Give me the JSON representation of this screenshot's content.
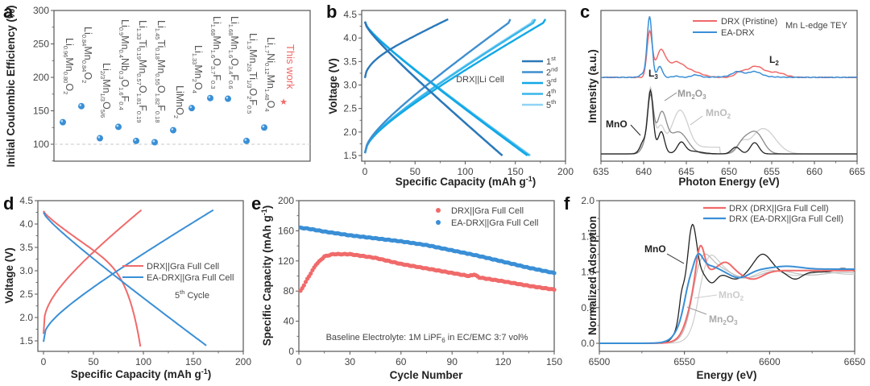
{
  "chart_data": [
    {
      "id": "a",
      "panel_label": "a",
      "type": "scatter",
      "title": "",
      "xlabel": "",
      "ylabel": "Initial Coulombic Efficiency (%)",
      "ylim": [
        75,
        300
      ],
      "yticks": [
        "100",
        "150",
        "200",
        "250",
        "300"
      ],
      "reference_line": 100,
      "points": [
        {
          "material": "Li0.96Mn0.80O2",
          "value": 133
        },
        {
          "material": "Li0.84Mn0.84O2",
          "value": 157
        },
        {
          "material": "Li2/3Mn1/3O5/6",
          "value": 109
        },
        {
          "material": "Li0.9Mn0.4Nb0.3O1.6F0.4",
          "value": 126
        },
        {
          "material": "Li1.33Ti0.19Mn0.57O1.81F0.19",
          "value": 105
        },
        {
          "material": "Li1.45Ti0.18Mn0.55O1.82F0.18",
          "value": 103
        },
        {
          "material": "LiMnO2",
          "value": 121
        },
        {
          "material": "Li1.33Mn2O4",
          "value": 154
        },
        {
          "material": "Li1.68Mn1.6O3.7F0.3",
          "value": 169
        },
        {
          "material": "Li1.68Mn1.6O3.4F0.6",
          "value": 168
        },
        {
          "material": "Li1.5Mn2/3Ti1/3O2F0.5",
          "value": 105
        },
        {
          "material": "Li1.7Ni0.12Mn1.48O4",
          "value": 125
        }
      ],
      "labels": [
        [
          [
            "Li",
            ""
          ],
          [
            "0.96",
            "s"
          ],
          [
            "Mn",
            ""
          ],
          [
            "0.80",
            "s"
          ],
          [
            "O",
            ""
          ],
          [
            "2",
            "s"
          ]
        ],
        [
          [
            "Li",
            ""
          ],
          [
            "0.84",
            "s"
          ],
          [
            "Mn",
            ""
          ],
          [
            "0.84",
            "s"
          ],
          [
            "O",
            ""
          ],
          [
            "2",
            "s"
          ]
        ],
        [
          [
            "Li",
            ""
          ],
          [
            "2/3",
            "s"
          ],
          [
            "Mn",
            ""
          ],
          [
            "1/3",
            "s"
          ],
          [
            "O",
            ""
          ],
          [
            "5/6",
            "s"
          ]
        ],
        [
          [
            "Li",
            ""
          ],
          [
            "0.9",
            "s"
          ],
          [
            "Mn",
            ""
          ],
          [
            "0.4",
            "s"
          ],
          [
            "Nb",
            ""
          ],
          [
            "0.3",
            "s"
          ],
          [
            "O",
            ""
          ],
          [
            "1.6",
            "s"
          ],
          [
            "F",
            ""
          ],
          [
            "0.4",
            "s"
          ]
        ],
        [
          [
            "Li",
            ""
          ],
          [
            "1.33",
            "s"
          ],
          [
            "Ti",
            ""
          ],
          [
            "0.19",
            "s"
          ],
          [
            "Mn",
            ""
          ],
          [
            "0.57",
            "s"
          ],
          [
            "O",
            ""
          ],
          [
            "1.81",
            "s"
          ],
          [
            "F",
            ""
          ],
          [
            "0.19",
            "s"
          ]
        ],
        [
          [
            "Li",
            ""
          ],
          [
            "1.45",
            "s"
          ],
          [
            "Ti",
            ""
          ],
          [
            "0.18",
            "s"
          ],
          [
            "Mn",
            ""
          ],
          [
            "0.55",
            "s"
          ],
          [
            "O",
            ""
          ],
          [
            "1.82",
            "s"
          ],
          [
            "F",
            ""
          ],
          [
            "0.18",
            "s"
          ]
        ],
        [
          [
            "LiMnO",
            ""
          ],
          [
            "2",
            "s"
          ]
        ],
        [
          [
            "Li",
            ""
          ],
          [
            "1.33",
            "s"
          ],
          [
            "Mn",
            ""
          ],
          [
            "2",
            "s"
          ],
          [
            "O",
            ""
          ],
          [
            "4",
            "s"
          ]
        ],
        [
          [
            "Li",
            ""
          ],
          [
            "1.68",
            "s"
          ],
          [
            "Mn",
            ""
          ],
          [
            "1.6",
            "s"
          ],
          [
            "O",
            ""
          ],
          [
            "3.7",
            "s"
          ],
          [
            "F",
            ""
          ],
          [
            "0.3",
            "s"
          ]
        ],
        [
          [
            "Li",
            ""
          ],
          [
            "1.68",
            "s"
          ],
          [
            "Mn",
            ""
          ],
          [
            "1.6",
            "s"
          ],
          [
            "O",
            ""
          ],
          [
            "3.4",
            "s"
          ],
          [
            "F",
            ""
          ],
          [
            "0.6",
            "s"
          ]
        ],
        [
          [
            "Li",
            ""
          ],
          [
            "1.5",
            "s"
          ],
          [
            "Mn",
            ""
          ],
          [
            "2/3",
            "s"
          ],
          [
            "Ti",
            ""
          ],
          [
            "1/3",
            "s"
          ],
          [
            "O",
            ""
          ],
          [
            "2",
            "s"
          ],
          [
            "F",
            ""
          ],
          [
            "0.5",
            "s"
          ]
        ],
        [
          [
            "Li",
            ""
          ],
          [
            "1.7",
            "s"
          ],
          [
            "Ni",
            ""
          ],
          [
            "0.12",
            "s"
          ],
          [
            "Mn",
            ""
          ],
          [
            "1.48",
            "s"
          ],
          [
            "O",
            ""
          ],
          [
            "4",
            "s"
          ]
        ]
      ],
      "this_work_label": "This work",
      "this_work_marker": "★",
      "colors": {
        "point": "#3a8fd6",
        "this_work": "#f06a6a"
      }
    },
    {
      "id": "b",
      "panel_label": "b",
      "type": "line",
      "xlabel": "Specific Capacity (mAh g⁻¹)",
      "ylabel": "Voltage (V)",
      "xlim": [
        0,
        200
      ],
      "ylim": [
        1.45,
        4.55
      ],
      "xticks": [
        "0",
        "50",
        "100",
        "150",
        "200"
      ],
      "yticks": [
        "1.5",
        "2.0",
        "2.5",
        "3.0",
        "3.5",
        "4.0",
        "4.5"
      ],
      "annotation": "DRX||Li Cell",
      "series": [
        {
          "name": "1st",
          "sup": "st",
          "base": "1",
          "color": "#2b78b8",
          "charge_end": 83,
          "charge_start_v": 3.15,
          "discharge_end": 137
        },
        {
          "name": "2nd",
          "sup": "nd",
          "base": "2",
          "color": "#3f8fcf",
          "charge_end": 145,
          "charge_start_v": 1.55,
          "discharge_end": 137
        },
        {
          "name": "3rd",
          "sup": "rd",
          "base": "3",
          "color": "#10a8e6",
          "charge_end": 180,
          "charge_start_v": 1.55,
          "discharge_end": 162
        },
        {
          "name": "4th",
          "sup": "th",
          "base": "4",
          "color": "#38b6ea",
          "charge_end": 170,
          "charge_start_v": 1.55,
          "discharge_end": 164
        },
        {
          "name": "5th",
          "sup": "th",
          "base": "5",
          "color": "#8fd3f5",
          "charge_end": 168,
          "charge_start_v": 1.55,
          "discharge_end": 165
        }
      ]
    },
    {
      "id": "c",
      "panel_label": "c",
      "type": "line",
      "xlabel": "Photon Energy (eV)",
      "ylabel": "Intensity (a.u.)",
      "xlim": [
        635,
        665
      ],
      "xticks": [
        "635",
        "640",
        "645",
        "650",
        "655",
        "660",
        "665"
      ],
      "annotation": "Mn L-edge TEY",
      "peak_labels": {
        "L3": "L",
        "L3_sub": "3",
        "L2": "L",
        "L2_sub": "2"
      },
      "ref_labels": {
        "MnO": "MnO",
        "Mn2O3": "Mn",
        "Mn2O3_a": "2",
        "Mn2O3_b": "O",
        "Mn2O3_c": "3",
        "MnO2": "MnO",
        "MnO2_sub": "2"
      },
      "series": [
        {
          "name": "DRX (Pristine)",
          "color": "#f06a6a"
        },
        {
          "name": "EA-DRX",
          "color": "#3a8fd6"
        },
        {
          "name": "MnO",
          "color": "#222222"
        },
        {
          "name": "Mn2O3",
          "color": "#888888"
        },
        {
          "name": "MnO2",
          "color": "#c8c8c8"
        }
      ]
    },
    {
      "id": "d",
      "panel_label": "d",
      "type": "line",
      "xlabel": "Specific Capacity (mAh g⁻¹)",
      "ylabel": "Voltage (V)",
      "xlim": [
        0,
        200
      ],
      "ylim": [
        1.35,
        4.5
      ],
      "xticks": [
        "0",
        "50",
        "100",
        "150",
        "200"
      ],
      "yticks": [
        "1.5",
        "2.0",
        "2.5",
        "3.0",
        "3.5",
        "4.0",
        "4.5"
      ],
      "annotation_base": "5",
      "annotation_sup": "th",
      "annotation_rest": " Cycle",
      "series": [
        {
          "name": "DRX||Gra Full Cell",
          "color": "#f06a6a",
          "charge_end": 98,
          "discharge_end": 97
        },
        {
          "name": "EA-DRX||Gra Full Cell",
          "color": "#3a8fd6",
          "charge_end": 170,
          "discharge_end": 163
        }
      ]
    },
    {
      "id": "e",
      "panel_label": "e",
      "type": "scatter",
      "xlabel": "Cycle Number",
      "ylabel": "Specific Capacity (mAh g⁻¹)",
      "xlim": [
        0,
        150
      ],
      "ylim": [
        0,
        200
      ],
      "xticks": [
        "0",
        "30",
        "60",
        "90",
        "120",
        "150"
      ],
      "yticks": [
        "0",
        "40",
        "80",
        "120",
        "160",
        "200"
      ],
      "annotation": "Baseline Electrolyte: 1M LiPF",
      "annotation_sub": "6",
      "annotation_rest": " in EC/EMC 3:7 vol%",
      "series": [
        {
          "name": "DRX||Gra Full Cell",
          "color": "#f06a6a",
          "keypoints": [
            [
              1,
              80
            ],
            [
              5,
              96
            ],
            [
              10,
              115
            ],
            [
              15,
              126
            ],
            [
              20,
              129
            ],
            [
              30,
              129
            ],
            [
              45,
              124
            ],
            [
              60,
              116
            ],
            [
              75,
              110
            ],
            [
              90,
              104
            ],
            [
              100,
              100
            ],
            [
              103,
              102
            ],
            [
              106,
              98
            ],
            [
              120,
              93
            ],
            [
              135,
              87
            ],
            [
              150,
              82
            ]
          ]
        },
        {
          "name": "EA-DRX||Gra Full Cell",
          "color": "#3a8fd6",
          "keypoints": [
            [
              1,
              164
            ],
            [
              5,
              163
            ],
            [
              15,
              159
            ],
            [
              30,
              154
            ],
            [
              45,
              150
            ],
            [
              60,
              146
            ],
            [
              75,
              141
            ],
            [
              90,
              134
            ],
            [
              105,
              127
            ],
            [
              120,
              119
            ],
            [
              135,
              111
            ],
            [
              150,
              104
            ]
          ]
        }
      ]
    },
    {
      "id": "f",
      "panel_label": "f",
      "type": "line",
      "xlabel": "Energy (eV)",
      "ylabel": "Normalized Adsorption",
      "xlim": [
        6500,
        6650
      ],
      "ylim": [
        -0.1,
        2.0
      ],
      "xticks": [
        "6500",
        "6550",
        "6600",
        "6650"
      ],
      "yticks": [
        "0.0",
        "0.5",
        "1.0",
        "1.5",
        "2.0"
      ],
      "ref_labels": {
        "MnO": "MnO",
        "MnO2": "MnO",
        "MnO2_sub": "2",
        "Mn2O3": "Mn",
        "Mn2O3_a": "2",
        "Mn2O3_b": "O",
        "Mn2O3_c": "3"
      },
      "series": [
        {
          "name": "DRX (DRX||Gra Full Cell)",
          "color": "#f06a6a"
        },
        {
          "name": "DRX (EA-DRX||Gra Full Cell)",
          "color": "#3a8fd6"
        },
        {
          "name": "MnO",
          "color": "#222222"
        },
        {
          "name": "MnO2",
          "color": "#cccccc"
        },
        {
          "name": "Mn2O3",
          "color": "#bbbbbb"
        }
      ]
    }
  ]
}
